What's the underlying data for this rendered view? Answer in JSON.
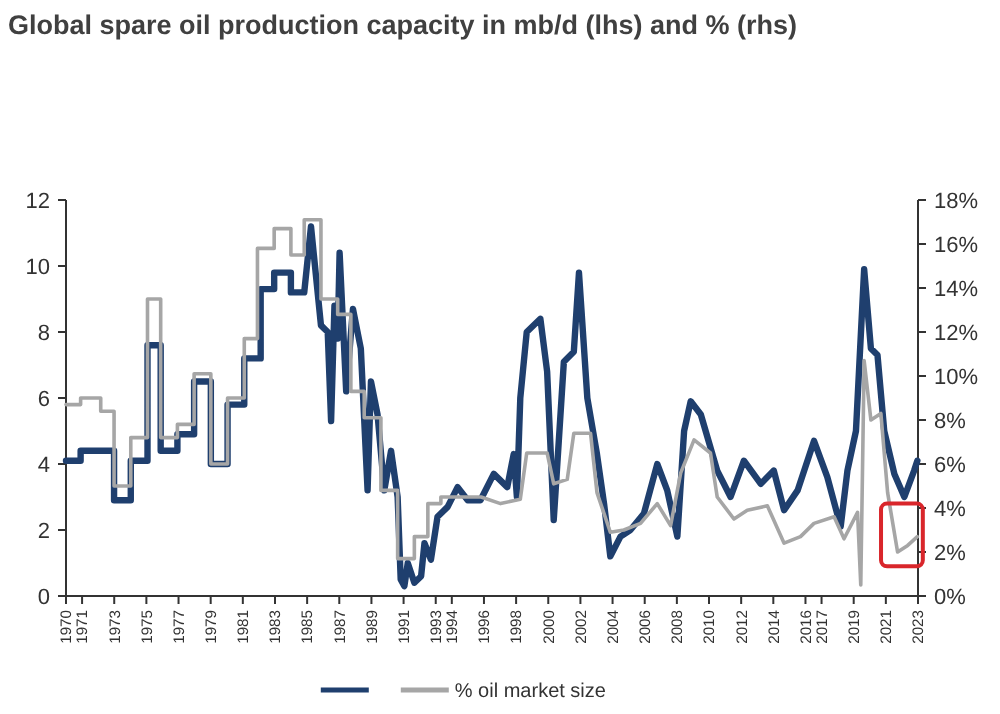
{
  "chart_data": {
    "type": "line",
    "title": "Global spare oil production capacity in mb/d (lhs) and % (rhs)",
    "xlim": [
      1970,
      2023
    ],
    "xticks": [
      1970,
      1971,
      1973,
      1975,
      1977,
      1979,
      1981,
      1983,
      1985,
      1987,
      1989,
      1991,
      1993,
      1994,
      1996,
      1998,
      2000,
      2002,
      2004,
      2006,
      2008,
      2010,
      2012,
      2014,
      2016,
      2017,
      2019,
      2021,
      2023
    ],
    "ylim": [
      0,
      12
    ],
    "yticks": [
      0,
      2,
      4,
      6,
      8,
      10,
      12
    ],
    "y2lim": [
      0,
      18
    ],
    "y2ticks": [
      {
        "value": 0,
        "label": "0%"
      },
      {
        "value": 2,
        "label": "2%"
      },
      {
        "value": 4,
        "label": "4%"
      },
      {
        "value": 6,
        "label": "6%"
      },
      {
        "value": 8,
        "label": "8%"
      },
      {
        "value": 10,
        "label": "10%"
      },
      {
        "value": 12,
        "label": "12%"
      },
      {
        "value": 14,
        "label": "14%"
      },
      {
        "value": 16,
        "label": "16%"
      },
      {
        "value": 18,
        "label": "18%"
      }
    ],
    "grid": false,
    "legend": "bottom",
    "line_style": "solid",
    "marker": "none",
    "series": [
      {
        "color": "#1f3f6e",
        "x": [
          1970,
          1970.91,
          1970.91,
          1972.99,
          1972.99,
          1974.03,
          1974.03,
          1975.07,
          1975.07,
          1975.89,
          1975.89,
          1976.93,
          1976.93,
          1977.97,
          1977.97,
          1979.01,
          1979.01,
          1980.05,
          1980.05,
          1981.09,
          1981.09,
          1982.11,
          1982.11,
          1982.95,
          1982.95,
          1983.99,
          1983.99,
          1984.82,
          1985.24,
          1985.86,
          1986.28,
          1986.49,
          1986.7,
          1986.9,
          1987.02,
          1987.43,
          1987.85,
          1988.34,
          1988.76,
          1988.97,
          1989.38,
          1989.8,
          1990.22,
          1990.63,
          1990.82,
          1991.05,
          1991.26,
          1991.67,
          1992.09,
          1992.3,
          1992.7,
          1993.11,
          1993.74,
          1994.36,
          1994.99,
          1995.78,
          1996.61,
          1997.45,
          1997.85,
          1998.05,
          1998.26,
          1998.66,
          1999.51,
          1999.93,
          2000.34,
          2000.97,
          2001.59,
          2001.91,
          2002.43,
          2003.03,
          2003.47,
          2003.86,
          2004.49,
          2005.11,
          2005.95,
          2006.78,
          2007.4,
          2008.03,
          2008.45,
          2008.86,
          2009.49,
          2010.51,
          2011.34,
          2012.17,
          2013.22,
          2014.03,
          2014.67,
          2015.51,
          2016.53,
          2017.36,
          2018.19,
          2018.61,
          2019.14,
          2019.65,
          2020.07,
          2020.48,
          2020.9,
          2021.53,
          2022.15,
          2022.76,
          2022.96
        ],
        "values": [
          4.1,
          4.1,
          4.4,
          4.4,
          2.9,
          2.9,
          4.1,
          4.1,
          7.6,
          7.6,
          4.4,
          4.4,
          4.9,
          4.9,
          6.5,
          6.5,
          4.0,
          4.0,
          5.8,
          5.8,
          7.2,
          7.2,
          9.3,
          9.3,
          9.8,
          9.8,
          9.2,
          9.2,
          11.2,
          8.2,
          8.0,
          5.3,
          8.8,
          7.8,
          10.4,
          6.2,
          8.7,
          7.5,
          3.2,
          6.5,
          5.5,
          3.2,
          4.4,
          3.0,
          0.5,
          0.3,
          1.0,
          0.4,
          0.6,
          1.6,
          1.1,
          2.4,
          2.7,
          3.3,
          2.9,
          2.9,
          3.7,
          3.3,
          4.3,
          3.0,
          6.0,
          8.0,
          8.4,
          6.8,
          2.3,
          7.1,
          7.4,
          9.8,
          6.0,
          4.3,
          2.8,
          1.2,
          1.8,
          2.0,
          2.5,
          4.0,
          3.2,
          1.8,
          5.0,
          5.9,
          5.5,
          3.8,
          3.0,
          4.1,
          3.4,
          3.8,
          2.6,
          3.2,
          4.7,
          3.6,
          2.1,
          3.8,
          5.0,
          9.9,
          7.5,
          7.3,
          5.0,
          3.7,
          3.0,
          3.8,
          4.1
        ]
      },
      {
        "name": "% oil market size",
        "color": "#a6a6a6",
        "axis": "y2",
        "x": [
          1970,
          1970.91,
          1970.91,
          1972.16,
          1972.16,
          1972.99,
          1972.99,
          1974.03,
          1974.03,
          1975.07,
          1975.07,
          1975.89,
          1975.89,
          1976.93,
          1976.93,
          1977.97,
          1977.97,
          1979.01,
          1979.01,
          1980.05,
          1980.05,
          1981.09,
          1981.09,
          1981.91,
          1981.91,
          1982.95,
          1982.95,
          1983.99,
          1983.99,
          1984.82,
          1984.82,
          1985.86,
          1985.86,
          1986.9,
          1986.9,
          1987.72,
          1987.72,
          1988.55,
          1988.55,
          1989.59,
          1989.59,
          1990.63,
          1990.63,
          1991.67,
          1991.67,
          1992.51,
          1992.51,
          1993.32,
          1993.32,
          1995.82,
          1997.03,
          1998.26,
          1998.66,
          1999.93,
          2000.34,
          2001.18,
          2001.59,
          2002.63,
          2003.03,
          2003.86,
          2004.7,
          2005.74,
          2006.78,
          2007.61,
          2008.24,
          2009.07,
          2010.09,
          2010.51,
          2011.55,
          2012.38,
          2013.63,
          2014.67,
          2015.69,
          2016.53,
          2017.78,
          2018.4,
          2019.24,
          2019.44,
          2019.65,
          2020.07,
          2020.69,
          2021.11,
          2021.73,
          2022.36,
          2022.96
        ],
        "values": [
          8.7,
          8.7,
          9.0,
          9.0,
          8.4,
          8.4,
          5.0,
          5.0,
          7.2,
          7.2,
          13.5,
          13.5,
          7.2,
          7.2,
          7.8,
          7.8,
          10.1,
          10.1,
          6.0,
          6.0,
          9.0,
          9.0,
          11.7,
          11.7,
          15.8,
          15.8,
          16.7,
          16.7,
          15.5,
          15.5,
          17.1,
          17.1,
          13.5,
          13.5,
          12.8,
          12.8,
          9.3,
          9.3,
          8.1,
          8.1,
          4.8,
          4.8,
          1.7,
          1.7,
          2.7,
          2.7,
          4.2,
          4.2,
          4.5,
          4.5,
          4.2,
          4.4,
          6.5,
          6.5,
          5.1,
          5.3,
          7.4,
          7.4,
          4.7,
          2.9,
          3.0,
          3.3,
          4.2,
          3.2,
          5.6,
          7.1,
          6.5,
          4.5,
          3.5,
          3.9,
          4.1,
          2.4,
          2.7,
          3.3,
          3.6,
          2.6,
          3.8,
          0.5,
          10.7,
          8.0,
          8.3,
          4.7,
          2.0,
          2.3,
          2.7
        ]
      }
    ]
  }
}
